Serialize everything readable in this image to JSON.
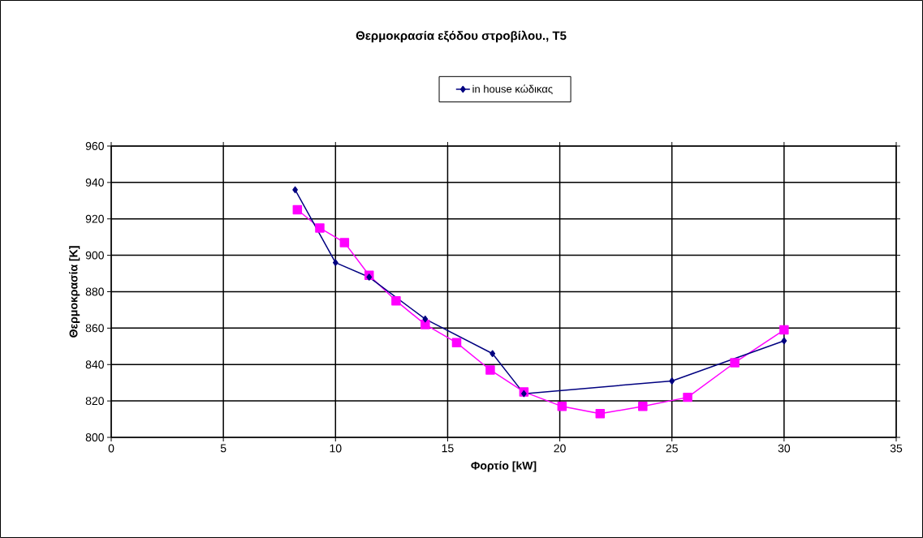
{
  "chart_data": {
    "type": "line",
    "title": "Θερμοκρασία εξόδου στροβίλου., T5",
    "xlabel": "Φορτίο [kW]",
    "ylabel": "Θερμοκρασία [K]",
    "xlim": [
      0,
      35
    ],
    "xticks": [
      0,
      5,
      10,
      15,
      20,
      25,
      30,
      35
    ],
    "ylim": [
      800,
      960
    ],
    "yticks": [
      800,
      820,
      840,
      860,
      880,
      900,
      920,
      940,
      960
    ],
    "grid": true,
    "legend": "top",
    "line_style": "solid",
    "series": [
      {
        "name": "in house κώδικας",
        "color": "#000080",
        "marker": "diamond",
        "x": [
          8.2,
          10,
          11.5,
          14,
          17,
          18.4,
          25,
          30
        ],
        "values": [
          936,
          896,
          888,
          865,
          846,
          824,
          831,
          853
        ]
      },
      {
        "color": "#ff00ff",
        "marker": "square",
        "x": [
          8.3,
          9.3,
          10.4,
          11.5,
          12.7,
          14,
          15.4,
          16.9,
          18.4,
          20.1,
          21.8,
          23.7,
          25.7,
          27.8,
          30
        ],
        "values": [
          925,
          915,
          907,
          889,
          875,
          862,
          852,
          837,
          825,
          817,
          813,
          817,
          822,
          841,
          859
        ]
      }
    ]
  }
}
